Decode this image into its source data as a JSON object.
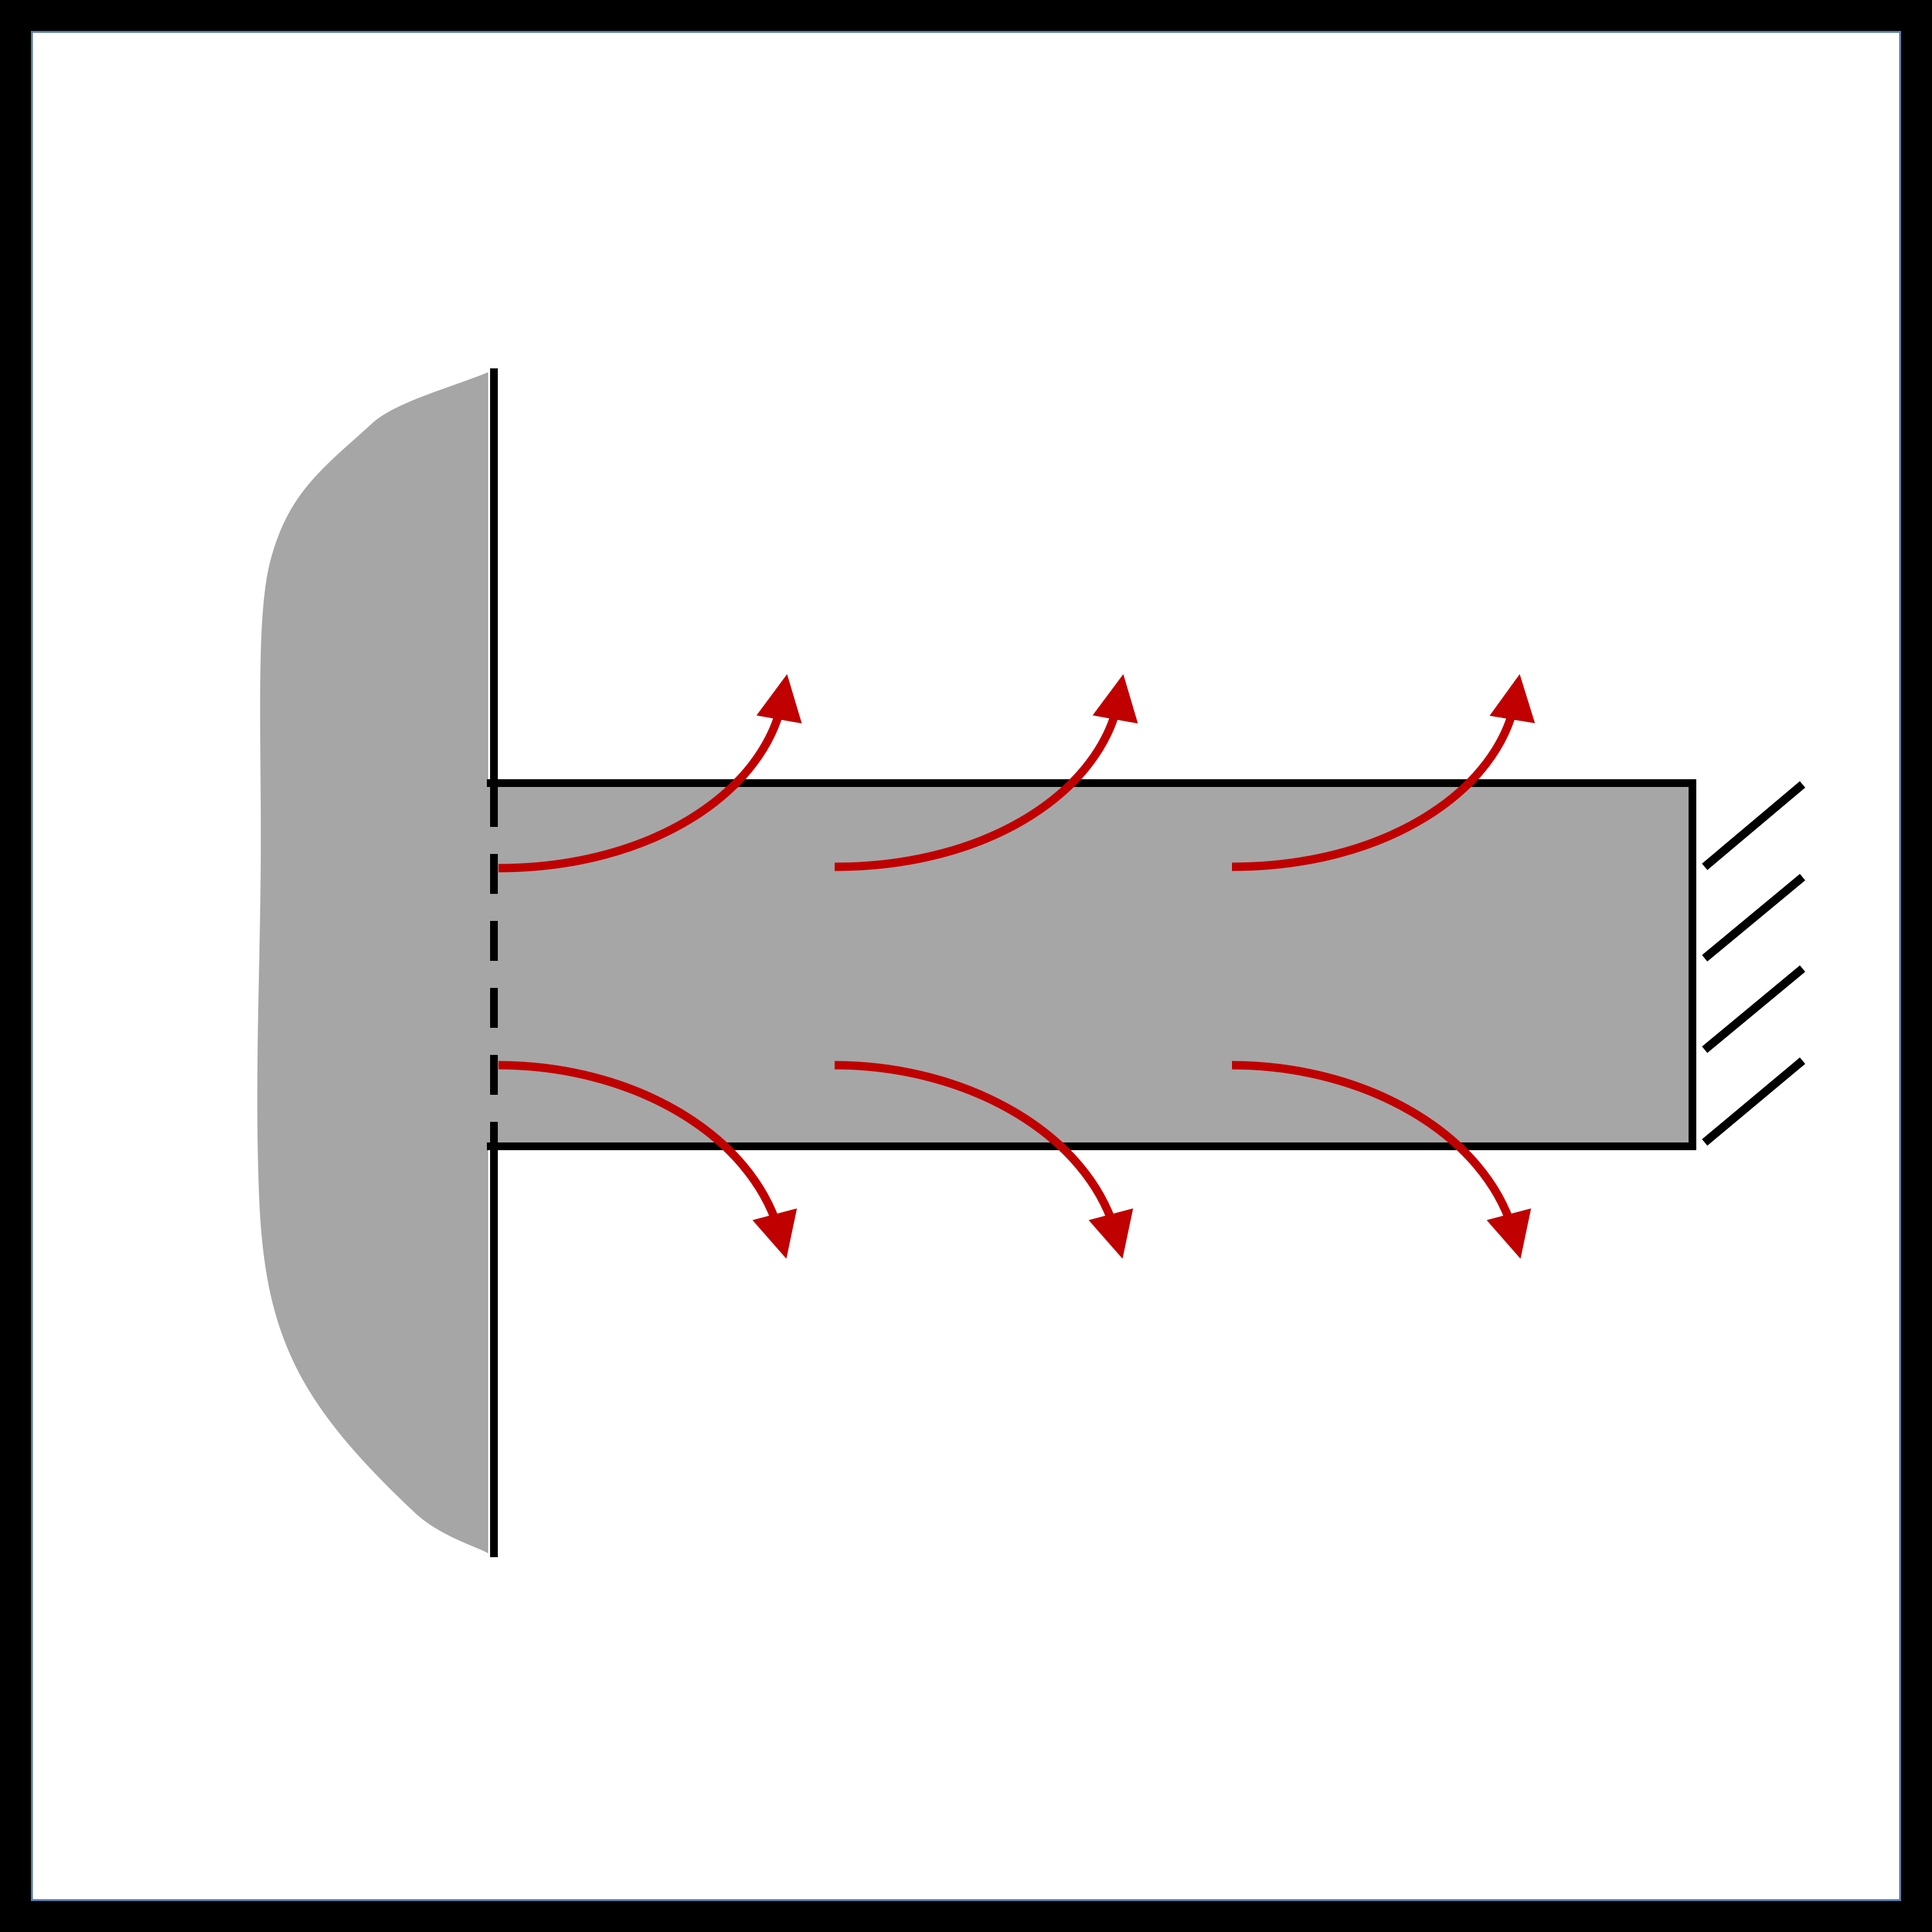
{
  "figure": {
    "description_free": true,
    "colors": {
      "frame": "#000000",
      "background": "#ffffff",
      "inner_border": "#5b7fb0",
      "body_fill": "#a6a6a6",
      "outline": "#000000",
      "flow_arrows": "#c00000"
    },
    "elements": {
      "reservoir": {
        "icon": "reservoir-blob"
      },
      "wall": {
        "icon": "boundary-wall"
      },
      "perforated_boundary": {
        "icon": "dashed-interface"
      },
      "fin": {
        "icon": "rectangular-fin"
      },
      "fixed_support": {
        "icon": "hatched-wall-support",
        "hatch_count": 4
      },
      "flow_arrows": {
        "icon": "curved-arrow",
        "count_up": 3,
        "count_down": 3
      }
    }
  }
}
